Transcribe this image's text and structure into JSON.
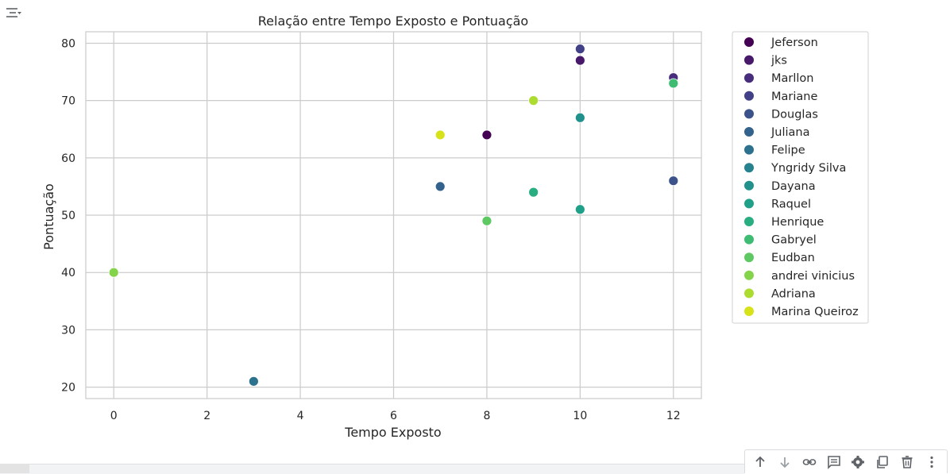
{
  "toolbar": {
    "buttons": [
      {
        "name": "move-up-button",
        "icon": "arrow-up-icon"
      },
      {
        "name": "move-down-button",
        "icon": "arrow-down-icon"
      },
      {
        "name": "link-button",
        "icon": "link-icon"
      },
      {
        "name": "comment-button",
        "icon": "comment-icon"
      },
      {
        "name": "settings-button",
        "icon": "gear-icon"
      },
      {
        "name": "mirror-cell-button",
        "icon": "mirror-icon"
      },
      {
        "name": "delete-button",
        "icon": "trash-icon"
      },
      {
        "name": "more-button",
        "icon": "more-vert-icon"
      }
    ]
  },
  "chart_data": {
    "type": "scatter",
    "title": "Relação entre Tempo Exposto e Pontuação",
    "xlabel": "Tempo Exposto",
    "ylabel": "Pontuação",
    "xlim": [
      -0.6,
      12.6
    ],
    "ylim": [
      18,
      82
    ],
    "xticks": [
      0,
      2,
      4,
      6,
      8,
      10,
      12
    ],
    "yticks": [
      20,
      30,
      40,
      50,
      60,
      70,
      80
    ],
    "grid": true,
    "legend_position": "outside-right",
    "series": [
      {
        "name": "Jeferson",
        "color": "#440154",
        "points": [
          {
            "x": 8,
            "y": 64
          }
        ]
      },
      {
        "name": "jks",
        "color": "#48186a",
        "points": [
          {
            "x": 10,
            "y": 77
          }
        ]
      },
      {
        "name": "Marllon",
        "color": "#472d7b",
        "points": [
          {
            "x": 12,
            "y": 74
          }
        ]
      },
      {
        "name": "Mariane",
        "color": "#424086",
        "points": [
          {
            "x": 10,
            "y": 79
          }
        ]
      },
      {
        "name": "Douglas",
        "color": "#3b528b",
        "points": [
          {
            "x": 12,
            "y": 56
          }
        ]
      },
      {
        "name": "Juliana",
        "color": "#33638d",
        "points": [
          {
            "x": 7,
            "y": 55
          }
        ]
      },
      {
        "name": "Felipe",
        "color": "#2c728e",
        "points": [
          {
            "x": 3,
            "y": 21
          }
        ]
      },
      {
        "name": "Yngridy Silva",
        "color": "#26828e",
        "points": []
      },
      {
        "name": "Dayana",
        "color": "#21918c",
        "points": [
          {
            "x": 10,
            "y": 67
          }
        ]
      },
      {
        "name": "Raquel",
        "color": "#1fa088",
        "points": [
          {
            "x": 10,
            "y": 51
          }
        ]
      },
      {
        "name": "Henrique",
        "color": "#28ae80",
        "points": [
          {
            "x": 9,
            "y": 54
          }
        ]
      },
      {
        "name": "Gabryel",
        "color": "#3fbc73",
        "points": [
          {
            "x": 12,
            "y": 73
          }
        ]
      },
      {
        "name": "Eudban",
        "color": "#5ec962",
        "points": [
          {
            "x": 8,
            "y": 49
          }
        ]
      },
      {
        "name": "andrei vinicius",
        "color": "#84d44b",
        "points": [
          {
            "x": 0,
            "y": 40
          }
        ]
      },
      {
        "name": "Adriana",
        "color": "#addc30",
        "points": [
          {
            "x": 9,
            "y": 70
          }
        ]
      },
      {
        "name": "Marina Queiroz",
        "color": "#d8e219",
        "points": [
          {
            "x": 7,
            "y": 64
          }
        ]
      }
    ]
  }
}
